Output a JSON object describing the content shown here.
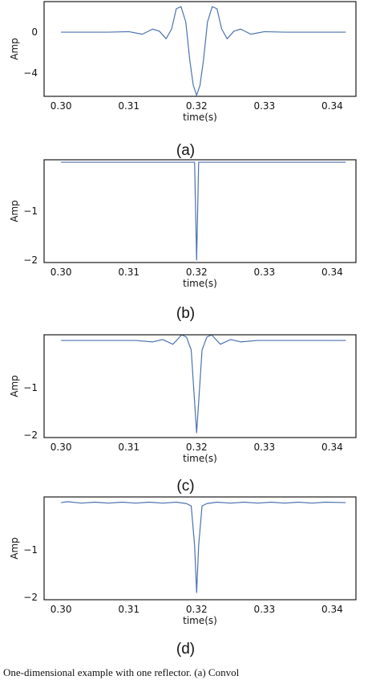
{
  "figure": {
    "caption": "One-dimensional example with one reflector. (a) Convol"
  },
  "chart_data": [
    {
      "type": "line",
      "panel_label": "(a)",
      "xlabel": "time(s)",
      "ylabel": "Amp",
      "xlim": [
        0.2975,
        0.3435
      ],
      "ylim": [
        -6.3,
        3.0
      ],
      "xticks": [
        0.3,
        0.31,
        0.32,
        0.33,
        0.34
      ],
      "xtick_labels": [
        "0.30",
        "0.31",
        "0.32",
        "0.33",
        "0.34"
      ],
      "yticks": [
        0,
        -4
      ],
      "ytick_labels": [
        "0",
        "−4"
      ],
      "grid": false,
      "color": "#4c72b0",
      "x": [
        0.3,
        0.307,
        0.31,
        0.312,
        0.3135,
        0.3145,
        0.3155,
        0.3163,
        0.317,
        0.3177,
        0.3184,
        0.319,
        0.3195,
        0.32,
        0.3205,
        0.321,
        0.3216,
        0.3223,
        0.323,
        0.3237,
        0.3245,
        0.3255,
        0.3265,
        0.328,
        0.33,
        0.333,
        0.342
      ],
      "y": [
        0,
        0,
        0.05,
        -0.2,
        0.3,
        0.1,
        -0.65,
        0.3,
        2.3,
        2.5,
        1.0,
        -2.8,
        -5.2,
        -6.2,
        -5.2,
        -2.8,
        1.0,
        2.5,
        2.3,
        0.3,
        -0.65,
        0.1,
        0.3,
        -0.2,
        0.05,
        0,
        0
      ]
    },
    {
      "type": "line",
      "panel_label": "(b)",
      "xlabel": "time(s)",
      "ylabel": "Amp",
      "xlim": [
        0.2975,
        0.3435
      ],
      "ylim": [
        -2.05,
        0.05
      ],
      "xticks": [
        0.3,
        0.31,
        0.32,
        0.33,
        0.34
      ],
      "xtick_labels": [
        "0.30",
        "0.31",
        "0.32",
        "0.33",
        "0.34"
      ],
      "yticks": [
        -1,
        -2
      ],
      "ytick_labels": [
        "−1",
        "−2"
      ],
      "grid": false,
      "color": "#4c72b0",
      "x": [
        0.3,
        0.3197,
        0.32,
        0.3203,
        0.342
      ],
      "y": [
        0,
        0,
        -2.0,
        0,
        0
      ]
    },
    {
      "type": "line",
      "panel_label": "(c)",
      "xlabel": "time(s)",
      "ylabel": "Amp",
      "xlim": [
        0.2975,
        0.3435
      ],
      "ylim": [
        -2.05,
        0.12
      ],
      "xticks": [
        0.3,
        0.31,
        0.32,
        0.33,
        0.34
      ],
      "xtick_labels": [
        "0.30",
        "0.31",
        "0.32",
        "0.33",
        "0.34"
      ],
      "yticks": [
        -1,
        -2
      ],
      "ytick_labels": [
        "−1",
        "−2"
      ],
      "grid": false,
      "color": "#4c72b0",
      "x": [
        0.3,
        0.311,
        0.3135,
        0.315,
        0.3165,
        0.3178,
        0.3185,
        0.3192,
        0.3197,
        0.32,
        0.3203,
        0.3208,
        0.3215,
        0.3222,
        0.3235,
        0.325,
        0.3265,
        0.329,
        0.342
      ],
      "y": [
        0,
        0,
        -0.03,
        0.02,
        -0.08,
        0.12,
        0.07,
        -0.2,
        -1.3,
        -1.95,
        -1.3,
        -0.2,
        0.07,
        0.12,
        -0.08,
        0.02,
        -0.03,
        0,
        0
      ]
    },
    {
      "type": "line",
      "panel_label": "(d)",
      "xlabel": "time(s)",
      "ylabel": "Amp",
      "xlim": [
        0.2975,
        0.3435
      ],
      "ylim": [
        -2.05,
        0.12
      ],
      "xticks": [
        0.3,
        0.31,
        0.32,
        0.33,
        0.34
      ],
      "xtick_labels": [
        "0.30",
        "0.31",
        "0.32",
        "0.33",
        "0.34"
      ],
      "yticks": [
        -1,
        -2
      ],
      "ytick_labels": [
        "−1",
        "−2"
      ],
      "grid": false,
      "color": "#4c72b0",
      "x": [
        0.3,
        0.301,
        0.303,
        0.305,
        0.307,
        0.309,
        0.311,
        0.313,
        0.315,
        0.317,
        0.3185,
        0.3192,
        0.3197,
        0.32,
        0.3203,
        0.3208,
        0.3215,
        0.323,
        0.325,
        0.327,
        0.329,
        0.331,
        0.333,
        0.335,
        0.337,
        0.339,
        0.342
      ],
      "y": [
        0,
        0.02,
        -0.01,
        0.01,
        -0.01,
        0.01,
        -0.01,
        0.01,
        -0.01,
        0.01,
        -0.02,
        -0.07,
        -0.9,
        -1.9,
        -0.9,
        -0.07,
        -0.02,
        0.01,
        -0.01,
        0.01,
        -0.01,
        0.01,
        -0.01,
        0.01,
        -0.01,
        0.01,
        0
      ]
    }
  ]
}
